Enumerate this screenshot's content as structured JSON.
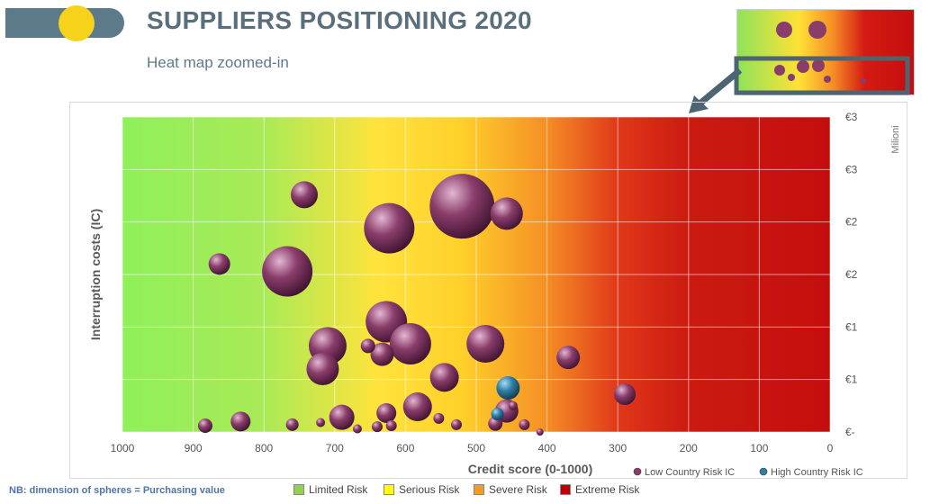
{
  "header": {
    "title": "SUPPLIERS POSITIONING 2020",
    "subtitle": "Heat map zoomed-in"
  },
  "note": "NB: dimension of spheres = Purchasing value",
  "risk_legend": [
    {
      "label": "Limited Risk",
      "color": "#92d050"
    },
    {
      "label": "Serious Risk",
      "color": "#ffff00"
    },
    {
      "label": "Severe Risk",
      "color": "#f59a23"
    },
    {
      "label": "Extreme Risk",
      "color": "#c00000"
    }
  ],
  "colors": {
    "low": "#8a3d6a",
    "high": "#2f7fa8"
  },
  "chart_data": {
    "type": "scatter",
    "xlabel": "Credit score (0-1000)",
    "ylabel": "Interruption costs (IC)",
    "y_unit_label": "Milioni",
    "xlim": [
      1000,
      0
    ],
    "x_ticks": [
      1000,
      900,
      800,
      700,
      600,
      500,
      400,
      300,
      200,
      100,
      0
    ],
    "ylim": [
      0,
      3
    ],
    "y_ticks": [
      0,
      0.5,
      1,
      1.5,
      2,
      2.5,
      3
    ],
    "y_tick_labels": [
      "€-",
      "€1",
      "€1",
      "€2",
      "€2",
      "€3",
      "€3"
    ],
    "grid": true,
    "legend_position": "bottom-right",
    "series": [
      {
        "name": "Low Country Risk IC",
        "points": [
          {
            "x": 520,
            "y": 2.15,
            "size": 36
          },
          {
            "x": 623,
            "y": 1.94,
            "size": 28
          },
          {
            "x": 767,
            "y": 1.53,
            "size": 28
          },
          {
            "x": 457,
            "y": 2.08,
            "size": 18
          },
          {
            "x": 743,
            "y": 2.26,
            "size": 15
          },
          {
            "x": 863,
            "y": 1.6,
            "size": 12
          },
          {
            "x": 627,
            "y": 1.05,
            "size": 23
          },
          {
            "x": 593,
            "y": 0.84,
            "size": 23
          },
          {
            "x": 710,
            "y": 0.82,
            "size": 21
          },
          {
            "x": 487,
            "y": 0.84,
            "size": 21
          },
          {
            "x": 717,
            "y": 0.6,
            "size": 18
          },
          {
            "x": 545,
            "y": 0.52,
            "size": 16
          },
          {
            "x": 370,
            "y": 0.71,
            "size": 13
          },
          {
            "x": 633,
            "y": 0.74,
            "size": 13
          },
          {
            "x": 653,
            "y": 0.82,
            "size": 8
          },
          {
            "x": 290,
            "y": 0.36,
            "size": 12
          },
          {
            "x": 583,
            "y": 0.24,
            "size": 16
          },
          {
            "x": 690,
            "y": 0.14,
            "size": 14
          },
          {
            "x": 627,
            "y": 0.18,
            "size": 11
          },
          {
            "x": 457,
            "y": 0.2,
            "size": 13
          },
          {
            "x": 833,
            "y": 0.1,
            "size": 11
          },
          {
            "x": 883,
            "y": 0.06,
            "size": 8
          },
          {
            "x": 760,
            "y": 0.07,
            "size": 7
          },
          {
            "x": 720,
            "y": 0.09,
            "size": 5
          },
          {
            "x": 668,
            "y": 0.03,
            "size": 5
          },
          {
            "x": 640,
            "y": 0.05,
            "size": 6
          },
          {
            "x": 620,
            "y": 0.06,
            "size": 6
          },
          {
            "x": 553,
            "y": 0.13,
            "size": 6
          },
          {
            "x": 528,
            "y": 0.07,
            "size": 6
          },
          {
            "x": 473,
            "y": 0.08,
            "size": 8
          },
          {
            "x": 432,
            "y": 0.07,
            "size": 6
          },
          {
            "x": 448,
            "y": 0.25,
            "size": 5
          },
          {
            "x": 410,
            "y": 0.0,
            "size": 4
          }
        ]
      },
      {
        "name": "High Country Risk IC",
        "points": [
          {
            "x": 455,
            "y": 0.42,
            "size": 13
          },
          {
            "x": 470,
            "y": 0.17,
            "size": 7
          }
        ]
      }
    ]
  }
}
